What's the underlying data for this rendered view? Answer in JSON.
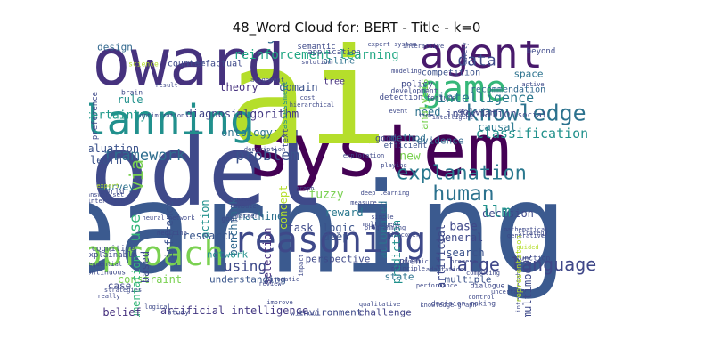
{
  "chart_data": {
    "type": "wordcloud",
    "title": "48_Word Cloud for: BERT - Title - k=0",
    "words": [
      {
        "text": "learning",
        "color": "#3b5a8f"
      },
      {
        "text": "model",
        "color": "#3f4a8a"
      },
      {
        "text": "system",
        "color": "#440154"
      },
      {
        "text": "ai",
        "color": "#b5de2b"
      },
      {
        "text": "toward",
        "color": "#46327e"
      },
      {
        "text": "agent",
        "color": "#481a6c"
      },
      {
        "text": "planning",
        "color": "#21908d"
      },
      {
        "text": "game",
        "color": "#35b779"
      },
      {
        "text": "reasoning",
        "color": "#3e4989"
      },
      {
        "text": "approach",
        "color": "#7ad151"
      },
      {
        "text": "language model",
        "color": "#365c8d"
      },
      {
        "text": "knowledge",
        "color": "#2c728e"
      },
      {
        "text": "explanation",
        "color": "#2a788e"
      },
      {
        "text": "data",
        "color": "#3e4a89"
      },
      {
        "text": "human",
        "color": "#2c728e"
      },
      {
        "text": "problem",
        "color": "#3b528b"
      },
      {
        "text": "framework",
        "color": "#2e6d8e"
      },
      {
        "text": "large language",
        "color": "#3f4788"
      },
      {
        "text": "via",
        "color": "#7ad151"
      },
      {
        "text": "generation",
        "color": "#31688e"
      },
      {
        "text": "intelligence",
        "color": "#2a788e"
      },
      {
        "text": "classification",
        "color": "#21918c"
      },
      {
        "text": "reinforcement learning",
        "color": "#22a884"
      },
      {
        "text": "information",
        "color": "#3e4989"
      },
      {
        "text": "causal",
        "color": "#2a788e"
      },
      {
        "text": "uncertainty",
        "color": "#1f9a8a"
      },
      {
        "text": "evaluation",
        "color": "#3b528b"
      },
      {
        "text": "diagnosis",
        "color": "#404387"
      },
      {
        "text": "algorithm",
        "color": "#443983"
      },
      {
        "text": "theory",
        "color": "#46307e"
      },
      {
        "text": "domain",
        "color": "#3b528b"
      },
      {
        "text": "ontology",
        "color": "#2c728e"
      },
      {
        "text": "method",
        "color": "#2e6e8e"
      },
      {
        "text": "evidence",
        "color": "#31688e"
      },
      {
        "text": "new",
        "color": "#7ad151"
      },
      {
        "text": "decision",
        "color": "#3e4989"
      },
      {
        "text": "base",
        "color": "#3f4889"
      },
      {
        "text": "llm",
        "color": "#21918c"
      },
      {
        "text": "reward",
        "color": "#2a788e"
      },
      {
        "text": "fuzzy",
        "color": "#7ad151"
      },
      {
        "text": "use",
        "color": "#35b779"
      },
      {
        "text": "learn",
        "color": "#3b528b"
      },
      {
        "text": "survey",
        "color": "#2c728e"
      },
      {
        "text": "action",
        "color": "#21918c"
      },
      {
        "text": "inference",
        "color": "#3b528b"
      },
      {
        "text": "research",
        "color": "#39568c"
      },
      {
        "text": "benchmark",
        "color": "#31688e"
      },
      {
        "text": "machine",
        "color": "#2d708e"
      },
      {
        "text": "task",
        "color": "#3e4a89"
      },
      {
        "text": "deep",
        "color": "#3b528b"
      },
      {
        "text": "network",
        "color": "#21918c"
      },
      {
        "text": "using",
        "color": "#3e4989"
      },
      {
        "text": "constraint",
        "color": "#7ad151"
      },
      {
        "text": "selection",
        "color": "#46307e"
      },
      {
        "text": "automated",
        "color": "#2c728e"
      },
      {
        "text": "prediction",
        "color": "#21918c"
      },
      {
        "text": "search",
        "color": "#3b528b"
      },
      {
        "text": "general",
        "color": "#3e4989"
      },
      {
        "text": "multiple",
        "color": "#3b528b"
      },
      {
        "text": "multimodal",
        "color": "#3e4989"
      },
      {
        "text": "argumentation",
        "color": "#35b779"
      },
      {
        "text": "understanding",
        "color": "#39568c"
      },
      {
        "text": "environment",
        "color": "#3e4a89"
      },
      {
        "text": "challenge",
        "color": "#404387"
      },
      {
        "text": "belief",
        "color": "#46307e"
      },
      {
        "text": "artificial intelligence",
        "color": "#443983"
      },
      {
        "text": "artificial",
        "color": "#3e4989"
      },
      {
        "text": "design",
        "color": "#31688e"
      },
      {
        "text": "rule",
        "color": "#21918c"
      },
      {
        "text": "need",
        "color": "#2c728e"
      },
      {
        "text": "solving",
        "color": "#3e4989"
      },
      {
        "text": "analysis",
        "color": "#7ad151"
      },
      {
        "text": "concept",
        "color": "#b5de2b"
      },
      {
        "text": "based",
        "color": "#3e4989"
      },
      {
        "text": "logic",
        "color": "#3b528b"
      },
      {
        "text": "perspective",
        "color": "#3e4989"
      },
      {
        "text": "state",
        "color": "#2c728e"
      },
      {
        "text": "case",
        "color": "#3e4989"
      },
      {
        "text": "good",
        "color": "#3e4989"
      },
      {
        "text": "efficient",
        "color": "#3b528b"
      },
      {
        "text": "plan",
        "color": "#3e4989"
      },
      {
        "text": "recommendation",
        "color": "#31688e"
      },
      {
        "text": "space",
        "color": "#2c728e"
      },
      {
        "text": "social",
        "color": "#3e4989"
      },
      {
        "text": "beyond",
        "color": "#3e4989"
      },
      {
        "text": "policy",
        "color": "#3e4989"
      },
      {
        "text": "competition",
        "color": "#3b528b"
      },
      {
        "text": "online",
        "color": "#2c728e"
      },
      {
        "text": "semantic",
        "color": "#3e4989"
      },
      {
        "text": "application",
        "color": "#3e4989"
      },
      {
        "text": "counterfactual",
        "color": "#3e4989"
      },
      {
        "text": "tree",
        "color": "#46307e"
      },
      {
        "text": "detection",
        "color": "#3e4989"
      },
      {
        "text": "development",
        "color": "#3e4989"
      },
      {
        "text": "feature",
        "color": "#3e4989"
      },
      {
        "text": "interactive",
        "color": "#3e4989"
      },
      {
        "text": "expert system",
        "color": "#3e4989"
      },
      {
        "text": "modeling",
        "color": "#3e4989"
      },
      {
        "text": "brain",
        "color": "#3e4989"
      },
      {
        "text": "hierarchical",
        "color": "#3e4989"
      },
      {
        "text": "optimization",
        "color": "#3e4989"
      },
      {
        "text": "time",
        "color": "#3e4989"
      },
      {
        "text": "intelligent",
        "color": "#3e4989"
      },
      {
        "text": "event",
        "color": "#3e4989"
      },
      {
        "text": "alignment",
        "color": "#3e4989"
      },
      {
        "text": "science",
        "color": "#b5de2b"
      },
      {
        "text": "large",
        "color": "#3e4989"
      },
      {
        "text": "solution",
        "color": "#3e4989"
      },
      {
        "text": "active",
        "color": "#3e4989"
      },
      {
        "text": "cost",
        "color": "#3e4989"
      },
      {
        "text": "preference",
        "color": "#3e4989"
      },
      {
        "text": "result",
        "color": "#3e4989"
      },
      {
        "text": "assessment",
        "color": "#21918c"
      },
      {
        "text": "text",
        "color": "#3e4989"
      },
      {
        "text": "description",
        "color": "#3e4989"
      },
      {
        "text": "explainable",
        "color": "#3e4989"
      },
      {
        "text": "answer set",
        "color": "#3e4989"
      },
      {
        "text": "interaction",
        "color": "#3e4989"
      },
      {
        "text": "expert",
        "color": "#b5de2b"
      },
      {
        "text": "world",
        "color": "#3e4989"
      },
      {
        "text": "cognitive",
        "color": "#3e4989"
      },
      {
        "text": "continuous",
        "color": "#3e4989"
      },
      {
        "text": "sequential",
        "color": "#3e4989"
      },
      {
        "text": "neural network",
        "color": "#3e4989"
      },
      {
        "text": "goal",
        "color": "#3e4989"
      },
      {
        "text": "argument",
        "color": "#3e4989"
      },
      {
        "text": "computer",
        "color": "#3e4989"
      },
      {
        "text": "matter",
        "color": "#3e4989"
      },
      {
        "text": "graph",
        "color": "#3e4989"
      },
      {
        "text": "measure",
        "color": "#3e4989"
      },
      {
        "text": "simple",
        "color": "#3e4989"
      },
      {
        "text": "multiagent",
        "color": "#3e4989"
      },
      {
        "text": "programming",
        "color": "#3e4989"
      },
      {
        "text": "playing",
        "color": "#3e4989"
      },
      {
        "text": "exploration",
        "color": "#3e4989"
      },
      {
        "text": "deep learning",
        "color": "#3e4989"
      },
      {
        "text": "discovery",
        "color": "#3e4989"
      },
      {
        "text": "dynamic",
        "color": "#3e4989"
      },
      {
        "text": "process",
        "color": "#3e4989"
      },
      {
        "text": "adaptation",
        "color": "#3e4989"
      },
      {
        "text": "performance",
        "color": "#3e4989"
      },
      {
        "text": "principle",
        "color": "#3e4989"
      },
      {
        "text": "dialogue",
        "color": "#3e4989"
      },
      {
        "text": "decision making",
        "color": "#3e4989"
      },
      {
        "text": "knowledge graph",
        "color": "#3e4989"
      },
      {
        "text": "control",
        "color": "#3e4989"
      },
      {
        "text": "uncertain",
        "color": "#3e4989"
      },
      {
        "text": "generative",
        "color": "#3e4989"
      },
      {
        "text": "function",
        "color": "#3e4989"
      },
      {
        "text": "strategy",
        "color": "#3e4989"
      },
      {
        "text": "mathematical",
        "color": "#3e4989"
      },
      {
        "text": "guided",
        "color": "#b5de2b"
      },
      {
        "text": "interpretable",
        "color": "#3e4989"
      },
      {
        "text": "representation",
        "color": "#b5de2b"
      },
      {
        "text": "impact",
        "color": "#3e4989"
      },
      {
        "text": "improve",
        "color": "#3e4989"
      },
      {
        "text": "study",
        "color": "#3e4989"
      },
      {
        "text": "without",
        "color": "#3e4989"
      },
      {
        "text": "qualitative",
        "color": "#3e4989"
      },
      {
        "text": "logical",
        "color": "#3e4989"
      },
      {
        "text": "automatic",
        "color": "#3e4989"
      },
      {
        "text": "strategies",
        "color": "#3e4989"
      },
      {
        "text": "really",
        "color": "#3e4989"
      },
      {
        "text": "medicine",
        "color": "#3e4989"
      },
      {
        "text": "safety",
        "color": "#3e4989"
      },
      {
        "text": "computing",
        "color": "#3e4989"
      },
      {
        "text": "review",
        "color": "#3e4989"
      }
    ]
  }
}
